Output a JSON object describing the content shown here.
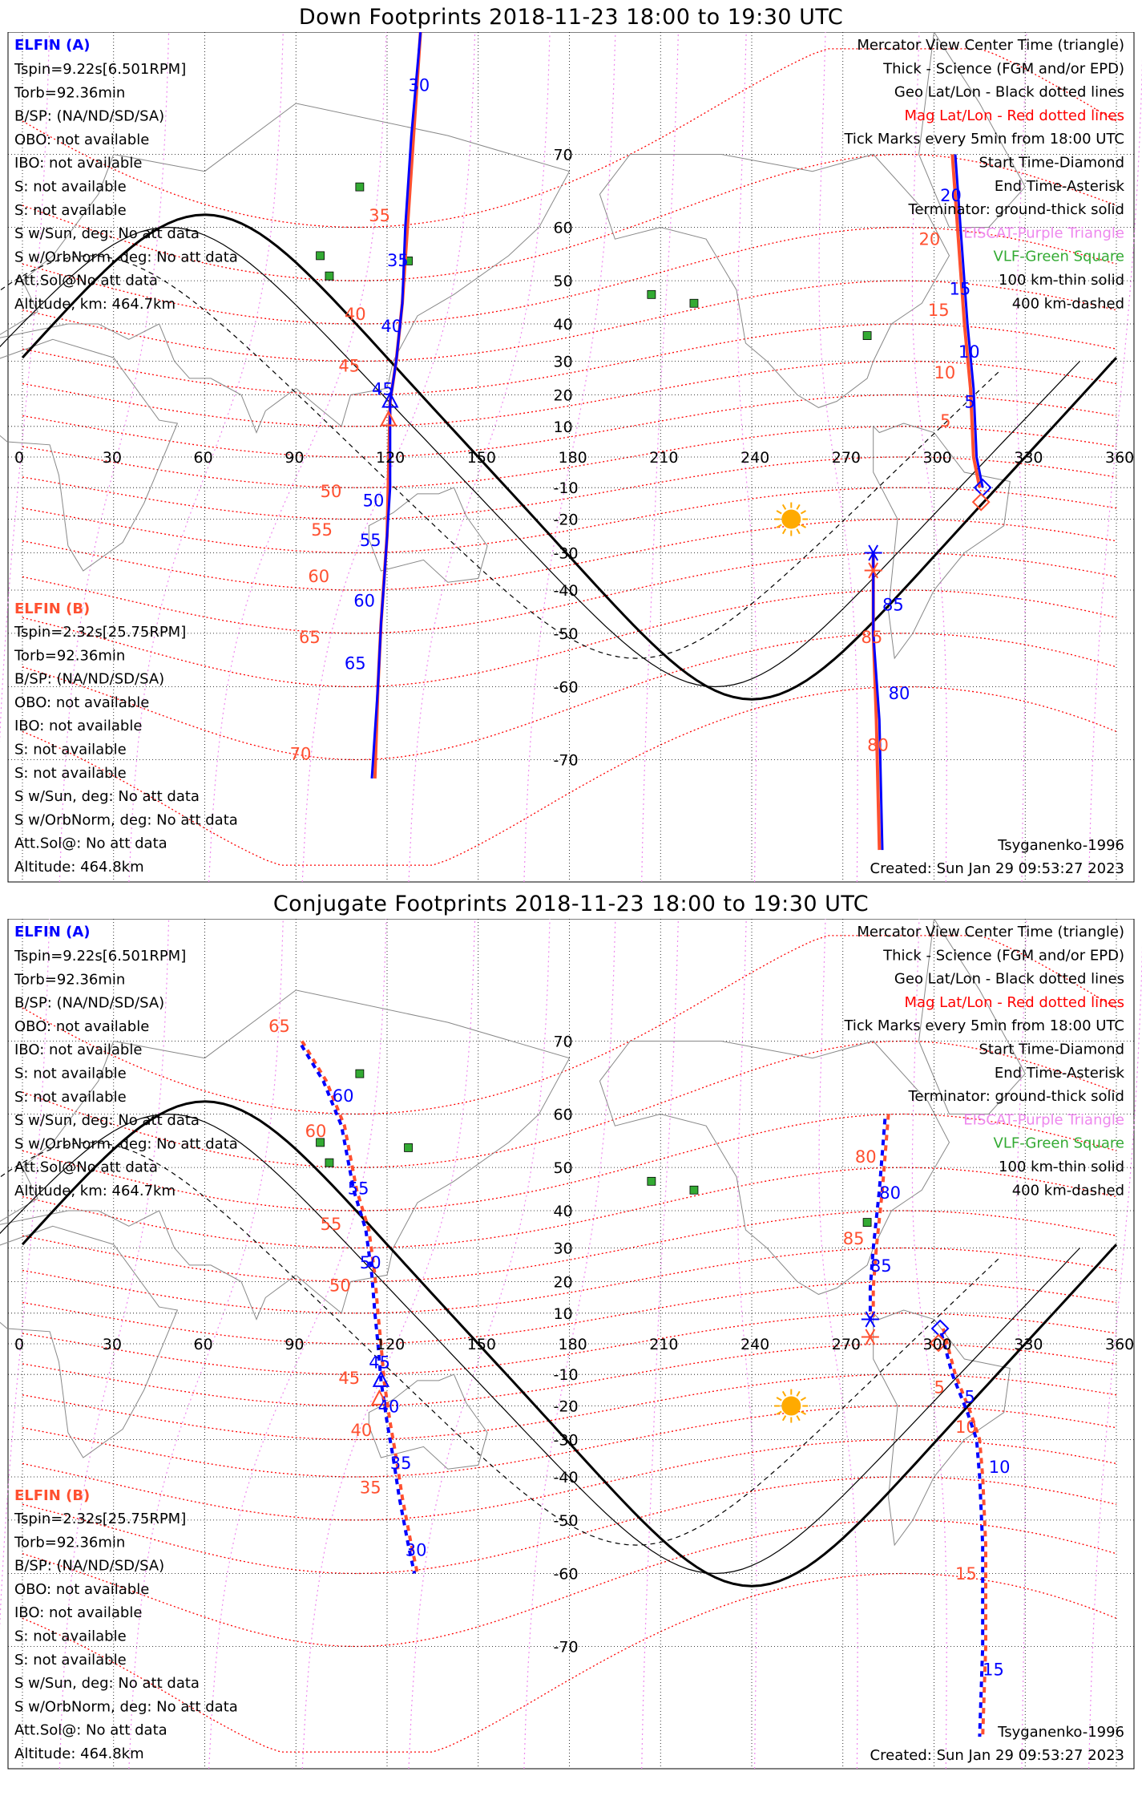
{
  "panels": [
    {
      "id": "down",
      "title": "Down Footprints 2018-11-23 18:00 to 19:30 UTC",
      "elfin_a": {
        "label": "ELFIN (A)",
        "lines": [
          "Tspin=9.22s[6.501RPM]",
          "Torb=92.36min",
          "B/SP: (NA/ND/SD/SA)",
          "OBO: not available",
          "IBO: not available",
          "S: not available",
          "S: not available",
          "S w/Sun, deg: No att data",
          "S w/OrbNorm, deg: No att data",
          "Att.Sol@No att data",
          "Altitude, km: 464.7km"
        ]
      },
      "elfin_b": {
        "label": "ELFIN (B)",
        "lines": [
          "Tspin=2.32s[25.75RPM]",
          "Torb=92.36min",
          "B/SP: (NA/ND/SD/SA)",
          "OBO: not available",
          "IBO: not available",
          "S: not available",
          "S: not available",
          "S w/Sun, deg: No att data",
          "S w/OrbNorm, deg: No att data",
          "Att.Sol@: No att data",
          "Altitude: 464.8km"
        ]
      },
      "track_a_labels": [
        {
          "lon": 117,
          "lat": -47,
          "t": "50",
          "c": "blue"
        },
        {
          "lon": 116,
          "lat": -57,
          "t": "55",
          "c": "blue"
        },
        {
          "lon": 114,
          "lat": -64,
          "t": "60",
          "c": "blue"
        },
        {
          "lon": 112,
          "lat": -70,
          "t": "65",
          "c": "blue"
        },
        {
          "lon": 121,
          "lat": 13,
          "t": "45",
          "c": "blue"
        },
        {
          "lon": 123,
          "lat": 35,
          "t": "40",
          "c": "blue"
        },
        {
          "lon": 126,
          "lat": 60,
          "t": "35",
          "c": "blue"
        },
        {
          "lon": 129,
          "lat": 82,
          "t": "30",
          "c": "blue"
        }
      ],
      "track_b_labels": []
    },
    {
      "id": "conjugate",
      "title": "Conjugate Footprints 2018-11-23 18:00 to 19:30 UTC",
      "elfin_a": {
        "label": "ELFIN (A)",
        "lines": [
          "Tspin=9.22s[6.501RPM]",
          "Torb=92.36min",
          "B/SP: (NA/ND/SD/SA)",
          "OBO: not available",
          "IBO: not available",
          "S: not available",
          "S: not available",
          "S w/Sun, deg: No att data",
          "S w/OrbNorm, deg: No att data",
          "Att.Sol@No att data",
          "Altitude, km: 464.7km"
        ]
      },
      "elfin_b": {
        "label": "ELFIN (B)",
        "lines": [
          "Tspin=2.32s[25.75RPM]",
          "Torb=92.36min",
          "B/SP: (NA/ND/SD/SA)",
          "OBO: not available",
          "IBO: not available",
          "S: not available",
          "S: not available",
          "S w/Sun, deg: No att data",
          "S w/OrbNorm, deg: No att data",
          "Att.Sol@: No att data",
          "Altitude: 464.8km"
        ]
      }
    }
  ],
  "legend": {
    "lines": [
      {
        "t": "Mercator View Center Time (triangle)",
        "c": "#000000"
      },
      {
        "t": "Thick - Science (FGM and/or EPD)",
        "c": "#000000"
      },
      {
        "t": "Geo Lat/Lon - Black dotted lines",
        "c": "#000000"
      },
      {
        "t": "Mag Lat/Lon - Red dotted lines",
        "c": "#ff0000"
      },
      {
        "t": "Tick Marks every 5min from 18:00 UTC",
        "c": "#000000"
      },
      {
        "t": "Start Time-Diamond",
        "c": "#000000"
      },
      {
        "t": "End Time-Asterisk",
        "c": "#000000"
      },
      {
        "t": "Terminator: ground-thick solid",
        "c": "#000000"
      },
      {
        "t": "EISCAT-Purple Triangle",
        "c": "#ee88ee"
      },
      {
        "t": "VLF-Green Square",
        "c": "#33aa33"
      },
      {
        "t": "100 km-thin solid",
        "c": "#000000"
      },
      {
        "t": "400 km-dashed",
        "c": "#000000"
      }
    ]
  },
  "footer": {
    "model": "Tsyganenko-1996",
    "created": "Created: Sun Jan 29 09:53:27 2023"
  },
  "axes": {
    "lon_ticks": [
      "0",
      "30",
      "60",
      "90",
      "120",
      "150",
      "180",
      "210",
      "240",
      "270",
      "300",
      "330",
      "360"
    ],
    "lat_ticks": [
      {
        "v": 70,
        "t": "70"
      },
      {
        "v": 60,
        "t": "60"
      },
      {
        "v": 50,
        "t": "50"
      },
      {
        "v": 40,
        "t": "40"
      },
      {
        "v": 30,
        "t": "30"
      },
      {
        "v": 20,
        "t": "20"
      },
      {
        "v": 10,
        "t": "10"
      },
      {
        "v": -10,
        "t": "-10"
      },
      {
        "v": -20,
        "t": "-20"
      },
      {
        "v": -30,
        "t": "-30"
      },
      {
        "v": -40,
        "t": "-40"
      },
      {
        "v": -50,
        "t": "-50"
      },
      {
        "v": -60,
        "t": "-60"
      },
      {
        "v": -70,
        "t": "-70"
      }
    ]
  },
  "map": {
    "lon_range": [
      0,
      360
    ],
    "lat_range": [
      -80,
      80
    ],
    "projection": "mercator",
    "geo_grid_color": "#000000",
    "mag_grid_color": "#ff0000",
    "eiscat_grid_color": "#ee88ee",
    "track_a_color": "#0000ff",
    "track_b_color": "#ff5030",
    "sun_color": "#ffaa00",
    "vlf_sites": [
      [
        111,
        66
      ],
      [
        98,
        55
      ],
      [
        101,
        51
      ],
      [
        127,
        54
      ],
      [
        207,
        47
      ],
      [
        278,
        37
      ],
      [
        221,
        45
      ]
    ],
    "sun": {
      "lon": 253,
      "lat": -20
    }
  },
  "tracks": {
    "down": {
      "a": [
        [
          115,
          -72
        ],
        [
          117,
          -60
        ],
        [
          118,
          -48
        ],
        [
          119,
          -38
        ],
        [
          120,
          -25
        ],
        [
          121,
          -10
        ],
        [
          121,
          5
        ],
        [
          121,
          18
        ],
        [
          123,
          30
        ],
        [
          125,
          45
        ],
        [
          126,
          60
        ],
        [
          128,
          72
        ],
        [
          131,
          80
        ]
      ],
      "b": [
        [
          116,
          -72
        ],
        [
          117,
          -60
        ],
        [
          118,
          -48
        ],
        [
          120,
          -25
        ],
        [
          121,
          18
        ],
        [
          123,
          30
        ],
        [
          125,
          45
        ],
        [
          127,
          62
        ],
        [
          131,
          80
        ]
      ],
      "a2": [
        [
          283,
          -78
        ],
        [
          282,
          -65
        ],
        [
          280,
          -50
        ],
        [
          280,
          -30
        ]
      ],
      "b2": [
        [
          282,
          -78
        ],
        [
          281,
          -65
        ],
        [
          280,
          -50
        ],
        [
          280,
          -30
        ]
      ],
      "a3": [
        [
          307,
          70
        ],
        [
          311,
          40
        ],
        [
          313,
          22
        ],
        [
          314,
          0
        ],
        [
          316,
          -10
        ]
      ],
      "b3": [
        [
          306,
          70
        ],
        [
          310,
          40
        ],
        [
          312,
          22
        ],
        [
          313,
          0
        ],
        [
          315,
          -10
        ]
      ],
      "labels": [
        {
          "lon": 127,
          "lat": 76,
          "t": "30",
          "c": "blue"
        },
        {
          "lon": 114,
          "lat": 61,
          "t": "35",
          "c": "orange"
        },
        {
          "lon": 120,
          "lat": 53,
          "t": "35",
          "c": "blue"
        },
        {
          "lon": 106,
          "lat": 41,
          "t": "40",
          "c": "orange"
        },
        {
          "lon": 118,
          "lat": 38,
          "t": "40",
          "c": "blue"
        },
        {
          "lon": 104,
          "lat": 27,
          "t": "45",
          "c": "orange"
        },
        {
          "lon": 115,
          "lat": 20,
          "t": "45",
          "c": "blue"
        },
        {
          "lon": 98,
          "lat": -13,
          "t": "50",
          "c": "orange"
        },
        {
          "lon": 112,
          "lat": -16,
          "t": "50",
          "c": "blue"
        },
        {
          "lon": 95,
          "lat": -25,
          "t": "55",
          "c": "orange"
        },
        {
          "lon": 111,
          "lat": -28,
          "t": "55",
          "c": "blue"
        },
        {
          "lon": 94,
          "lat": -38,
          "t": "60",
          "c": "orange"
        },
        {
          "lon": 109,
          "lat": -44,
          "t": "60",
          "c": "blue"
        },
        {
          "lon": 91,
          "lat": -52,
          "t": "65",
          "c": "orange"
        },
        {
          "lon": 106,
          "lat": -57,
          "t": "65",
          "c": "blue"
        },
        {
          "lon": 88,
          "lat": -70,
          "t": "70",
          "c": "orange"
        },
        {
          "lon": 302,
          "lat": 64,
          "t": "20",
          "c": "blue"
        },
        {
          "lon": 295,
          "lat": 57,
          "t": "20",
          "c": "orange"
        },
        {
          "lon": 305,
          "lat": 47,
          "t": "15",
          "c": "blue"
        },
        {
          "lon": 298,
          "lat": 42,
          "t": "15",
          "c": "orange"
        },
        {
          "lon": 308,
          "lat": 31,
          "t": "10",
          "c": "blue"
        },
        {
          "lon": 300,
          "lat": 25,
          "t": "10",
          "c": "orange"
        },
        {
          "lon": 310,
          "lat": 16,
          "t": "5",
          "c": "blue"
        },
        {
          "lon": 302,
          "lat": 10,
          "t": "5",
          "c": "orange"
        },
        {
          "lon": 283,
          "lat": -45,
          "t": "85",
          "c": "blue"
        },
        {
          "lon": 276,
          "lat": -52,
          "t": "85",
          "c": "orange"
        },
        {
          "lon": 285,
          "lat": -62,
          "t": "80",
          "c": "blue"
        },
        {
          "lon": 278,
          "lat": -69,
          "t": "80",
          "c": "orange"
        }
      ]
    },
    "conj": {
      "a": [
        [
          91,
          70
        ],
        [
          99,
          65
        ],
        [
          105,
          58
        ],
        [
          109,
          45
        ],
        [
          113,
          35
        ],
        [
          115,
          22
        ],
        [
          116,
          10
        ],
        [
          117,
          0
        ],
        [
          118,
          -12
        ],
        [
          120,
          -25
        ],
        [
          122,
          -35
        ],
        [
          124,
          -45
        ],
        [
          127,
          -55
        ],
        [
          129,
          -60
        ]
      ],
      "b": [
        [
          92,
          70
        ],
        [
          100,
          65
        ],
        [
          106,
          58
        ],
        [
          110,
          45
        ],
        [
          114,
          35
        ],
        [
          116,
          22
        ],
        [
          117,
          10
        ],
        [
          118,
          0
        ],
        [
          119,
          -12
        ],
        [
          121,
          -25
        ],
        [
          123,
          -35
        ],
        [
          125,
          -45
        ],
        [
          128,
          -55
        ],
        [
          130,
          -60
        ]
      ],
      "a2": [
        [
          284,
          60
        ],
        [
          282,
          45
        ],
        [
          280,
          30
        ],
        [
          279,
          18
        ],
        [
          279,
          8
        ]
      ],
      "b2": [
        [
          285,
          60
        ],
        [
          283,
          45
        ],
        [
          281,
          30
        ],
        [
          280,
          18
        ],
        [
          280,
          8
        ]
      ],
      "a3": [
        [
          302,
          5
        ],
        [
          306,
          -10
        ],
        [
          311,
          -22
        ],
        [
          314,
          -30
        ],
        [
          315,
          -40
        ],
        [
          316,
          -55
        ],
        [
          316,
          -70
        ],
        [
          315,
          -78
        ]
      ],
      "b3": [
        [
          303,
          5
        ],
        [
          307,
          -10
        ],
        [
          312,
          -22
        ],
        [
          315,
          -30
        ],
        [
          316,
          -40
        ],
        [
          317,
          -55
        ],
        [
          317,
          -70
        ],
        [
          316,
          -78
        ]
      ],
      "labels": [
        {
          "lon": 81,
          "lat": 71,
          "t": "65",
          "c": "orange"
        },
        {
          "lon": 102,
          "lat": 62,
          "t": "60",
          "c": "blue"
        },
        {
          "lon": 93,
          "lat": 56,
          "t": "60",
          "c": "orange"
        },
        {
          "lon": 107,
          "lat": 44,
          "t": "55",
          "c": "blue"
        },
        {
          "lon": 98,
          "lat": 35,
          "t": "55",
          "c": "orange"
        },
        {
          "lon": 111,
          "lat": 24,
          "t": "50",
          "c": "blue"
        },
        {
          "lon": 101,
          "lat": 17,
          "t": "50",
          "c": "orange"
        },
        {
          "lon": 114,
          "lat": -8,
          "t": "45",
          "c": "blue"
        },
        {
          "lon": 104,
          "lat": -13,
          "t": "45",
          "c": "orange"
        },
        {
          "lon": 117,
          "lat": -22,
          "t": "40",
          "c": "blue"
        },
        {
          "lon": 108,
          "lat": -29,
          "t": "40",
          "c": "orange"
        },
        {
          "lon": 121,
          "lat": -38,
          "t": "35",
          "c": "blue"
        },
        {
          "lon": 111,
          "lat": -44,
          "t": "35",
          "c": "orange"
        },
        {
          "lon": 126,
          "lat": -57,
          "t": "30",
          "c": "blue"
        },
        {
          "lon": 274,
          "lat": 51,
          "t": "80",
          "c": "orange"
        },
        {
          "lon": 282,
          "lat": 43,
          "t": "80",
          "c": "blue"
        },
        {
          "lon": 270,
          "lat": 31,
          "t": "85",
          "c": "orange"
        },
        {
          "lon": 279,
          "lat": 23,
          "t": "85",
          "c": "blue"
        },
        {
          "lon": 300,
          "lat": -16,
          "t": "5",
          "c": "orange"
        },
        {
          "lon": 310,
          "lat": -19,
          "t": "5",
          "c": "blue"
        },
        {
          "lon": 307,
          "lat": -28,
          "t": "10",
          "c": "orange"
        },
        {
          "lon": 318,
          "lat": -39,
          "t": "10",
          "c": "blue"
        },
        {
          "lon": 307,
          "lat": -61,
          "t": "15",
          "c": "orange"
        },
        {
          "lon": 316,
          "lat": -73,
          "t": "15",
          "c": "blue"
        }
      ]
    }
  }
}
